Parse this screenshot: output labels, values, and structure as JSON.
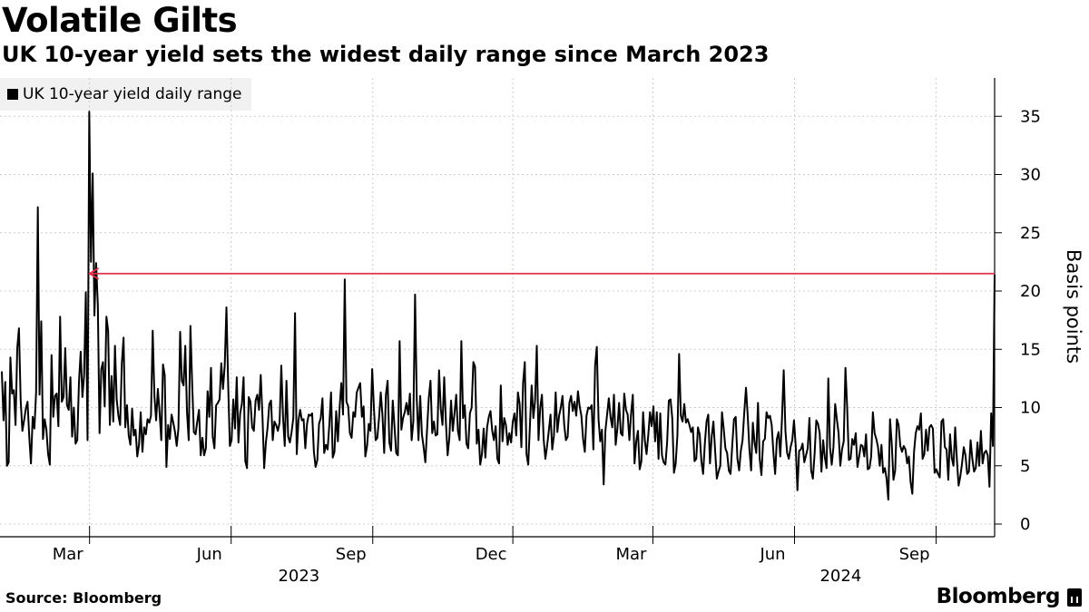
{
  "header": {
    "title": "Volatile Gilts",
    "subtitle": "UK 10-year yield sets the widest daily range since March 2023"
  },
  "legend": {
    "label": "UK 10-year yield daily range"
  },
  "footer": {
    "source": "Source: Bloomberg",
    "brand": "Bloomberg"
  },
  "colors": {
    "series": "#000000",
    "annotation": "#e0304a",
    "grid": "#cccccc"
  },
  "chart_data": {
    "type": "line",
    "title": "Volatile Gilts",
    "subtitle": "UK 10-year yield sets the widest daily range since March 2023",
    "xlabel": "",
    "ylabel": "Basis points",
    "ylim": [
      0,
      38
    ],
    "yticks": [
      0,
      5,
      10,
      15,
      20,
      25,
      30,
      35
    ],
    "y_axis_side": "right",
    "grid": "dotted vertical and horizontal",
    "legend_position": "top-left",
    "x_start": "2023-01-03",
    "x_end": "2024-10-09",
    "month_ticks": [
      {
        "label": "Mar",
        "date": "2023-03-01"
      },
      {
        "label": "Jun",
        "date": "2023-06-01"
      },
      {
        "label": "Sep",
        "date": "2023-09-01"
      },
      {
        "label": "Dec",
        "date": "2023-12-01"
      },
      {
        "label": "Mar",
        "date": "2024-03-01"
      },
      {
        "label": "Jun",
        "date": "2024-06-01"
      },
      {
        "label": "Sep",
        "date": "2024-09-01"
      }
    ],
    "year_labels": [
      {
        "label": "2023",
        "date": "2023-07-15"
      },
      {
        "label": "2024",
        "date": "2024-07-01"
      }
    ],
    "annotation": {
      "type": "arrow",
      "value": 21.5,
      "from_date": "2024-10-09",
      "to_date": "2023-03-01",
      "meaning": "widest daily range since March 2023"
    },
    "series": [
      {
        "name": "UK 10-year yield daily range",
        "start_date": "2023-01-03",
        "end_date": "2024-10-09",
        "values": [
          13.1,
          8.9,
          12.2,
          5.0,
          5.3,
          14.3,
          11.2,
          11.5,
          8.5,
          15.1,
          16.8,
          10.6,
          8.0,
          8.9,
          9.9,
          10.5,
          7.5,
          5.2,
          9.2,
          8.2,
          11.3,
          27.2,
          11.1,
          17.4,
          7.3,
          9.0,
          8.1,
          6.0,
          5.1,
          14.5,
          9.2,
          11.0,
          11.2,
          8.4,
          17.8,
          10.5,
          10.9,
          15.1,
          10.2,
          9.8,
          12.6,
          7.5,
          10.0,
          6.9,
          7.2,
          12.2,
          14.8,
          10.9,
          12.8,
          19.9,
          7.2,
          35.4,
          22.5,
          30.1,
          17.9,
          22.4,
          18.8,
          7.8,
          13.3,
          13.9,
          10.1,
          17.8,
          16.6,
          8.5,
          12.7,
          8.8,
          15.3,
          10.7,
          9.3,
          8.5,
          13.8,
          16.0,
          8.3,
          10.2,
          7.6,
          6.8,
          9.9,
          7.6,
          8.1,
          5.8,
          6.8,
          9.6,
          6.2,
          8.3,
          7.7,
          9.0,
          8.7,
          9.3,
          16.6,
          11.0,
          8.9,
          11.6,
          9.6,
          7.2,
          13.7,
          12.8,
          4.9,
          8.5,
          7.3,
          9.4,
          8.7,
          7.9,
          6.7,
          8.2,
          16.5,
          12.3,
          11.9,
          15.3,
          9.6,
          7.2,
          17.0,
          12.1,
          7.9,
          7.7,
          8.8,
          9.8,
          5.9,
          7.4,
          5.9,
          6.5,
          11.4,
          9.2,
          13.4,
          7.5,
          6.5,
          10.2,
          10.4,
          10.7,
          13.8,
          11.6,
          13.6,
          18.6,
          12.0,
          6.7,
          7.2,
          10.7,
          8.2,
          12.6,
          7.0,
          9.5,
          10.3,
          12.6,
          5.4,
          4.8,
          10.9,
          10.5,
          8.3,
          8.0,
          10.6,
          11.1,
          9.8,
          12.8,
          9.3,
          4.8,
          7.0,
          8.3,
          10.3,
          10.6,
          7.2,
          8.8,
          8.5,
          8.0,
          8.7,
          13.6,
          9.2,
          6.7,
          12.3,
          7.5,
          7.0,
          7.9,
          9.1,
          18.1,
          6.0,
          8.9,
          9.8,
          8.9,
          9.0,
          6.5,
          8.6,
          9.4,
          9.3,
          9.5,
          6.2,
          4.9,
          5.5,
          8.6,
          9.1,
          10.8,
          6.1,
          6.8,
          6.4,
          8.5,
          11.3,
          5.7,
          6.2,
          9.7,
          7.1,
          10.0,
          12.1,
          9.4,
          21.0,
          10.5,
          10.1,
          7.8,
          7.4,
          9.6,
          9.2,
          11.3,
          11.7,
          12.1,
          9.2,
          10.1,
          5.8,
          6.7,
          8.6,
          8.0,
          13.3,
          10.0,
          7.2,
          7.4,
          9.1,
          11.3,
          9.3,
          6.1,
          11.1,
          12.3,
          7.0,
          6.3,
          10.6,
          8.4,
          6.1,
          5.9,
          15.7,
          8.1,
          9.1,
          9.6,
          10.4,
          9.4,
          11.2,
          7.2,
          8.8,
          19.7,
          10.7,
          7.2,
          11.0,
          7.7,
          6.6,
          5.3,
          8.1,
          10.8,
          12.3,
          7.8,
          8.8,
          7.6,
          7.7,
          13.2,
          9.9,
          8.5,
          12.6,
          8.7,
          5.9,
          7.4,
          10.6,
          8.0,
          9.5,
          11.1,
          8.0,
          7.2,
          15.7,
          9.1,
          10.2,
          6.9,
          6.5,
          9.5,
          10.0,
          13.9,
          13.5,
          6.9,
          8.1,
          5.1,
          6.0,
          8.2,
          5.7,
          8.3,
          9.2,
          9.7,
          8.0,
          7.2,
          8.4,
          5.6,
          5.2,
          11.9,
          7.1,
          9.1,
          8.5,
          6.8,
          7.8,
          7.0,
          8.8,
          9.5,
          7.6,
          11.3,
          10.3,
          6.6,
          12.1,
          13.9,
          6.0,
          5.1,
          8.5,
          11.9,
          9.1,
          10.6,
          15.3,
          7.2,
          10.0,
          11.1,
          7.3,
          5.6,
          6.7,
          8.0,
          9.4,
          6.4,
          7.6,
          11.3,
          7.9,
          9.3,
          10.0,
          11.0,
          8.5,
          7.2,
          7.5,
          10.4,
          11.0,
          9.7,
          10.5,
          9.3,
          11.4,
          10.1,
          9.3,
          7.3,
          6.2,
          9.3,
          10.0,
          9.9,
          10.2,
          6.4,
          13.6,
          15.2,
          9.0,
          7.1,
          8.1,
          3.4,
          8.0,
          9.4,
          10.8,
          9.2,
          8.3,
          11.1,
          6.8,
          8.2,
          10.4,
          7.8,
          7.6,
          11.2,
          9.8,
          9.4,
          7.2,
          9.5,
          11.1,
          5.2,
          7.1,
          8.0,
          4.7,
          5.4,
          9.6,
          7.2,
          6.0,
          7.6,
          9.6,
          8.4,
          10.1,
          7.1,
          9.6,
          5.6,
          9.5,
          5.9,
          5.3,
          5.1,
          7.0,
          10.6,
          10.7,
          9.1,
          4.4,
          5.2,
          7.6,
          14.6,
          9.3,
          8.8,
          10.3,
          8.7,
          9.0,
          8.5,
          7.9,
          8.3,
          5.4,
          5.6,
          8.3,
          7.7,
          5.4,
          4.3,
          6.9,
          8.8,
          9.4,
          5.2,
          7.5,
          8.8,
          6.3,
          3.9,
          4.5,
          5.0,
          9.6,
          8.2,
          6.5,
          6.1,
          4.6,
          4.3,
          6.8,
          9.0,
          9.2,
          5.6,
          4.6,
          6.3,
          7.2,
          9.6,
          11.7,
          9.3,
          6.4,
          4.6,
          8.7,
          7.0,
          6.1,
          10.4,
          5.6,
          4.2,
          7.1,
          7.3,
          9.6,
          9.1,
          9.3,
          8.5,
          6.1,
          4.3,
          7.3,
          7.9,
          5.8,
          9.1,
          13.2,
          8.0,
          6.1,
          5.6,
          6.6,
          7.2,
          8.9,
          6.7,
          2.9,
          6.3,
          6.4,
          6.9,
          5.3,
          5.9,
          6.5,
          9.1,
          4.6,
          3.9,
          6.0,
          8.9,
          8.6,
          7.8,
          4.5,
          7.2,
          5.7,
          4.8,
          12.5,
          6.6,
          5.1,
          6.6,
          10.3,
          9.0,
          7.8,
          5.0,
          6.4,
          7.1,
          13.4,
          10.0,
          5.5,
          5.6,
          7.3,
          6.8,
          7.8,
          4.9,
          5.8,
          6.8,
          6.7,
          5.8,
          7.7,
          4.7,
          4.8,
          5.8,
          9.6,
          7.8,
          7.3,
          6.6,
          5.0,
          6.8,
          4.4,
          4.8,
          3.9,
          2.1,
          9.0,
          6.9,
          3.8,
          4.6,
          9.0,
          8.5,
          6.7,
          6.2,
          6.7,
          6.4,
          5.2,
          5.8,
          3.6,
          2.6,
          6.2,
          7.8,
          8.4,
          8.1,
          9.5,
          5.6,
          6.0,
          8.1,
          6.3,
          8.3,
          8.5,
          8.2,
          4.4,
          4.7,
          4.3,
          4.0,
          8.8,
          9.0,
          6.6,
          6.4,
          3.8,
          7.7,
          5.7,
          5.0,
          8.3,
          5.5,
          3.3,
          4.1,
          5.2,
          6.6,
          5.9,
          4.3,
          4.5,
          7.2,
          5.6,
          4.5,
          4.8,
          7.0,
          5.0,
          8.0,
          5.2,
          6.1,
          6.3,
          5.9,
          3.2,
          9.5,
          6.7,
          21.4
        ]
      }
    ]
  }
}
